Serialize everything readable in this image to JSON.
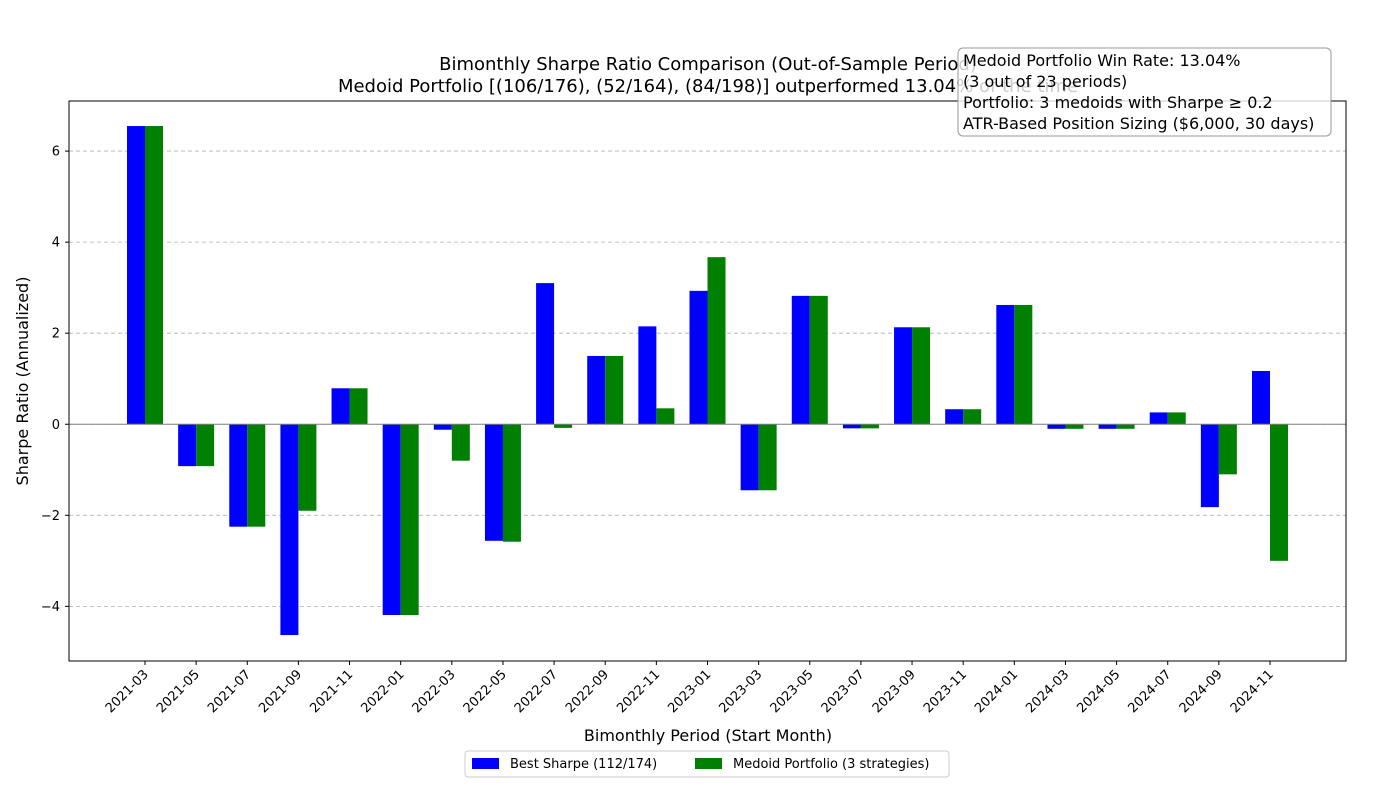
{
  "chart_data": {
    "type": "bar",
    "title": "Bimonthly Sharpe Ratio Comparison (Out-of-Sample Period)",
    "subtitle": "Medoid Portfolio [(106/176), (52/164), (84/198)] outperformed 13.04% of the time",
    "xlabel": "Bimonthly Period (Start Month)",
    "ylabel": "Sharpe Ratio (Annualized)",
    "ylim": [
      -5.2,
      7.1
    ],
    "yticks": [
      -4,
      -2,
      0,
      2,
      4,
      6
    ],
    "ytick_labels": [
      "−4",
      "−2",
      "0",
      "2",
      "4",
      "6"
    ],
    "grid": "y-dashed",
    "legend_position": "bottom-center",
    "categories": [
      "2021-03",
      "2021-05",
      "2021-07",
      "2021-09",
      "2021-11",
      "2022-01",
      "2022-03",
      "2022-05",
      "2022-07",
      "2022-09",
      "2022-11",
      "2023-01",
      "2023-03",
      "2023-05",
      "2023-07",
      "2023-09",
      "2023-11",
      "2024-01",
      "2024-03",
      "2024-05",
      "2024-07",
      "2024-09",
      "2024-11"
    ],
    "series": [
      {
        "name": "Best Sharpe (112/174)",
        "color": "#0000ff",
        "values": [
          6.55,
          -0.92,
          -2.25,
          -4.63,
          0.79,
          -4.19,
          -0.12,
          -2.56,
          3.1,
          1.5,
          2.15,
          2.93,
          -1.45,
          2.82,
          -0.09,
          2.13,
          0.33,
          2.62,
          -0.1,
          -0.1,
          0.26,
          -1.82,
          1.17
        ]
      },
      {
        "name": "Medoid Portfolio (3 strategies)",
        "color": "#008000",
        "values": [
          6.55,
          -0.92,
          -2.25,
          -1.9,
          0.79,
          -4.19,
          -0.8,
          -2.58,
          -0.08,
          1.5,
          0.35,
          3.67,
          -1.45,
          2.82,
          -0.09,
          2.13,
          0.33,
          2.62,
          -0.1,
          -0.1,
          0.26,
          -1.1,
          -3.0
        ]
      }
    ],
    "annotation_lines": [
      "Medoid Portfolio Win Rate: 13.04%",
      "(3 out of 23 periods)",
      "Portfolio: 3 medoids with Sharpe ≥ 0.2",
      "ATR-Based Position Sizing ($6,000, 30 days)"
    ]
  }
}
